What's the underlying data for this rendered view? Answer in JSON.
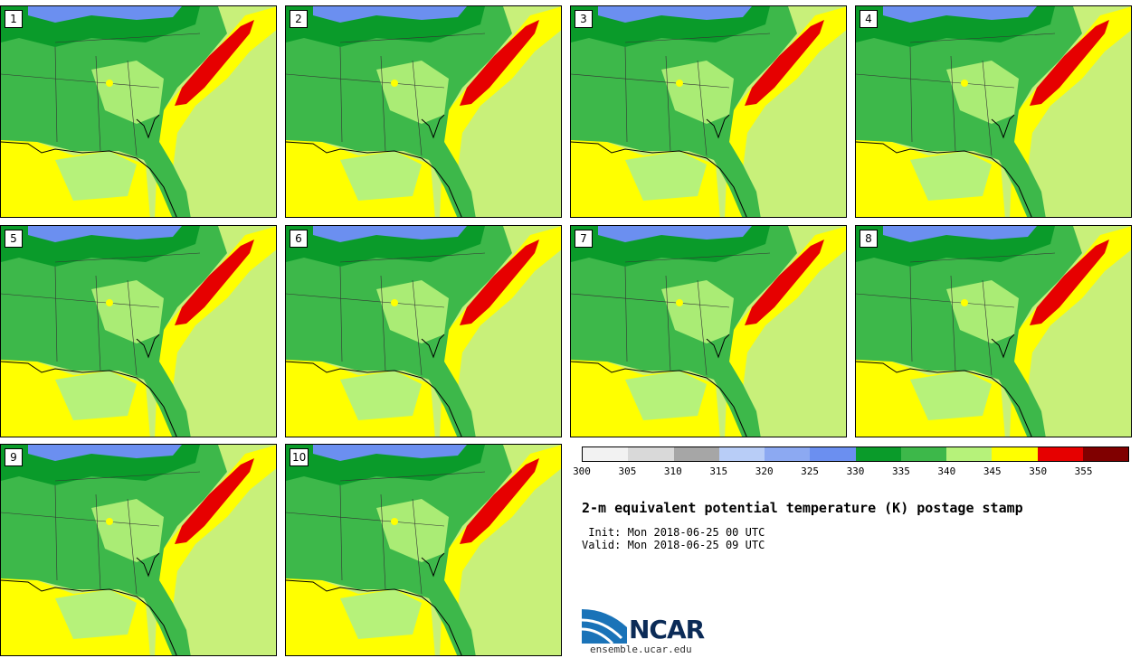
{
  "panels": [
    {
      "label": "1"
    },
    {
      "label": "2"
    },
    {
      "label": "3"
    },
    {
      "label": "4"
    },
    {
      "label": "5"
    },
    {
      "label": "6"
    },
    {
      "label": "7"
    },
    {
      "label": "8"
    },
    {
      "label": "9"
    },
    {
      "label": "10"
    }
  ],
  "colorbar": {
    "colors": [
      "#f2f2f2",
      "#d9d9d9",
      "#a6a6a6",
      "#b8cdf7",
      "#8ca9f2",
      "#6b8ff0",
      "#0a9b2a",
      "#3db84a",
      "#b6f27a",
      "#ffff00",
      "#e60000",
      "#800000"
    ],
    "ticks": [
      "300",
      "305",
      "310",
      "315",
      "320",
      "325",
      "330",
      "335",
      "340",
      "345",
      "350",
      "355"
    ]
  },
  "title": "2-m equivalent potential temperature (K) postage stamp",
  "init": " Init: Mon 2018-06-25 00 UTC",
  "valid": "Valid: Mon 2018-06-25 09 UTC",
  "logo": {
    "name": "NCAR",
    "url": "ensemble.ucar.edu"
  }
}
